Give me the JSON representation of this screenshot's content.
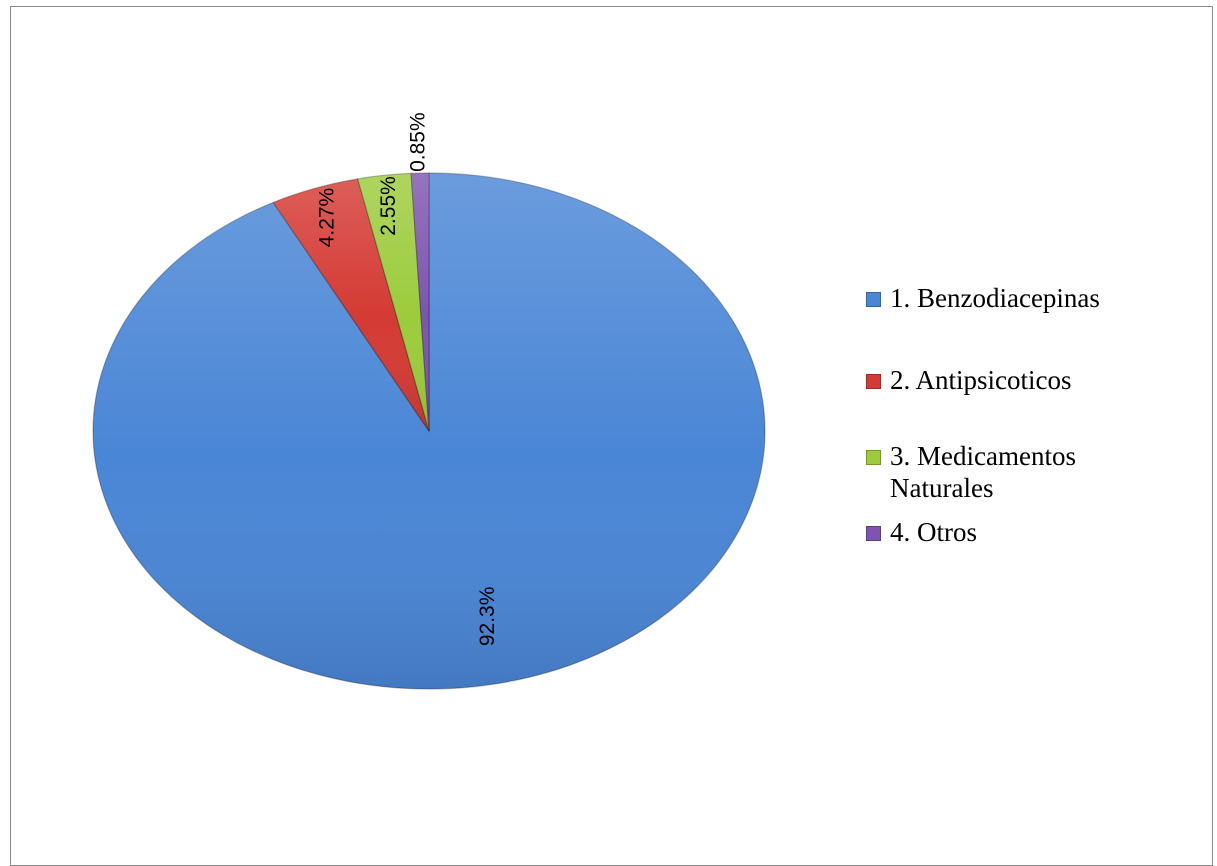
{
  "chart_data": {
    "type": "pie",
    "title": "",
    "categories": [
      "1. Benzodiacepinas",
      "2. Antipsicoticos",
      "3. Medicamentos Naturales",
      "4. Otros"
    ],
    "values": [
      92.3,
      4.27,
      2.55,
      0.85
    ],
    "value_labels": [
      "92.3%",
      "4.27%",
      "2.55%",
      "0.85%"
    ],
    "colors": [
      "#4a86d6",
      "#d53a34",
      "#9ccc3c",
      "#7d55b0"
    ],
    "legend_position": "right",
    "start_angle_deg": 0,
    "direction": "clockwise",
    "label_orientation": "rotated-vertical"
  },
  "legend": {
    "items": [
      {
        "label": "1. Benzodiacepinas",
        "color": "#4a86d6"
      },
      {
        "label": "2. Antipsicoticos",
        "color": "#d53a34"
      },
      {
        "label": "3. Medicamentos Naturales",
        "color": "#9ccc3c"
      },
      {
        "label": "4. Otros",
        "color": "#7d55b0"
      }
    ]
  }
}
